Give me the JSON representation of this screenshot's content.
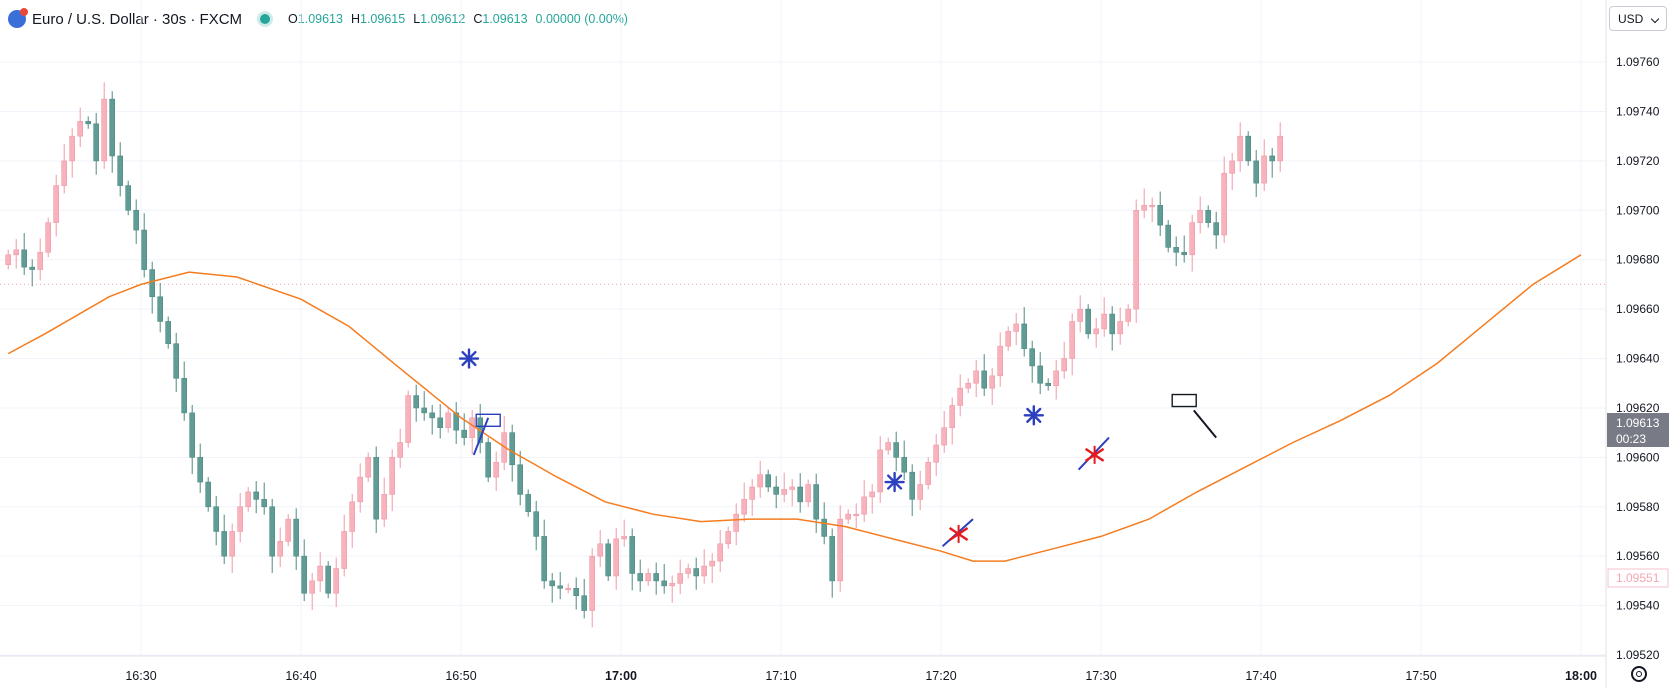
{
  "legend": {
    "symbol": "Euro / U.S. Dollar · 30s · FXCM",
    "market_status_color": "#26a69a",
    "open_label": "O",
    "open": "1.09613",
    "high_label": "H",
    "high": "1.09615",
    "low_label": "L",
    "low": "1.09612",
    "close_label": "C",
    "close": "1.09613",
    "change": "0.00000 (0.00%)"
  },
  "price_scale": {
    "currency": "USD",
    "current_price": "1.09613",
    "countdown": "00:23",
    "low_marker": "1.09551"
  },
  "colors": {
    "up": "#f7b2bc",
    "up_border": "#ef9aa8",
    "down": "#5f9c95",
    "down_border": "#4f8a83",
    "moving_average": "#f57c1f",
    "grid": "#f0f3fa",
    "annotation_blue": "#2b3fbf",
    "annotation_red": "#e5191e"
  },
  "chart_data": {
    "type": "candlestick",
    "title": "Euro / U.S. Dollar · 30s · FXCM",
    "ylim": [
      1.0952,
      1.09775
    ],
    "y_ticks": [
      "1.09760",
      "1.09740",
      "1.09720",
      "1.09700",
      "1.09680",
      "1.09660",
      "1.09640",
      "1.09620",
      "1.09600",
      "1.09580",
      "1.09560",
      "1.09540",
      "1.09520"
    ],
    "x_ticks": [
      {
        "label": "16:30",
        "minute": 30,
        "bold": false
      },
      {
        "label": "16:40",
        "minute": 40,
        "bold": false
      },
      {
        "label": "16:50",
        "minute": 50,
        "bold": false
      },
      {
        "label": "17:00",
        "minute": 60,
        "bold": true
      },
      {
        "label": "17:10",
        "minute": 70,
        "bold": false
      },
      {
        "label": "17:20",
        "minute": 80,
        "bold": false
      },
      {
        "label": "17:30",
        "minute": 90,
        "bold": false
      },
      {
        "label": "17:40",
        "minute": 100,
        "bold": false
      },
      {
        "label": "17:50",
        "minute": 110,
        "bold": false
      },
      {
        "label": "18:00",
        "minute": 120,
        "bold": true
      }
    ],
    "x_start_minute": 21.7,
    "bar_minutes": 0.5,
    "closes": [
      1.09682,
      1.09684,
      1.09677,
      1.09676,
      1.09683,
      1.09695,
      1.0971,
      1.0972,
      1.0973,
      1.09736,
      1.09735,
      1.0972,
      1.09745,
      1.09722,
      1.0971,
      1.097,
      1.09692,
      1.09676,
      1.09665,
      1.09655,
      1.09646,
      1.09632,
      1.09618,
      1.096,
      1.0959,
      1.0958,
      1.0957,
      1.0956,
      1.0957,
      1.0958,
      1.09586,
      1.09583,
      1.0958,
      1.0956,
      1.09566,
      1.09575,
      1.0956,
      1.09545,
      1.0955,
      1.09556,
      1.09545,
      1.09555,
      1.0957,
      1.09582,
      1.09592,
      1.096,
      1.09575,
      1.09585,
      1.096,
      1.09606,
      1.09625,
      1.0962,
      1.09618,
      1.09616,
      1.09612,
      1.09618,
      1.09611,
      1.09608,
      1.09616,
      1.09606,
      1.09592,
      1.09598,
      1.0961,
      1.09597,
      1.09585,
      1.09578,
      1.09568,
      1.0955,
      1.09548,
      1.09547,
      1.09547,
      1.09544,
      1.09538,
      1.0956,
      1.09565,
      1.09552,
      1.09567,
      1.09568,
      1.09553,
      1.0955,
      1.09553,
      1.0955,
      1.09548,
      1.09549,
      1.09553,
      1.09555,
      1.09552,
      1.09556,
      1.09558,
      1.09565,
      1.0957,
      1.09577,
      1.09583,
      1.09588,
      1.09593,
      1.09588,
      1.09585,
      1.09587,
      1.09588,
      1.09582,
      1.09589,
      1.09575,
      1.09568,
      1.0955,
      1.09575,
      1.09577,
      1.09577,
      1.09584,
      1.09586,
      1.09603,
      1.09606,
      1.096,
      1.09594,
      1.09583,
      1.09589,
      1.09598,
      1.09605,
      1.09612,
      1.09621,
      1.09628,
      1.0963,
      1.09635,
      1.09628,
      1.09633,
      1.09645,
      1.09651,
      1.09654,
      1.09644,
      1.09637,
      1.0963,
      1.09629,
      1.09635,
      1.0964,
      1.09655,
      1.0966,
      1.0965,
      1.09652,
      1.09658,
      1.0965,
      1.09655,
      1.0966,
      1.097,
      1.09702,
      1.09702,
      1.09694,
      1.09685,
      1.09683,
      1.09682,
      1.09695,
      1.097,
      1.09695,
      1.0969,
      1.09715,
      1.0972,
      1.0973,
      1.0972,
      1.09711,
      1.09722,
      1.0972,
      1.0973
    ],
    "moving_average": [
      [
        21.7,
        1.09642
      ],
      [
        24,
        1.0965
      ],
      [
        28,
        1.09665
      ],
      [
        30,
        1.0967
      ],
      [
        33,
        1.09675
      ],
      [
        36,
        1.09673
      ],
      [
        40,
        1.09664
      ],
      [
        43,
        1.09653
      ],
      [
        46,
        1.09637
      ],
      [
        50,
        1.09616
      ],
      [
        53,
        1.09603
      ],
      [
        56,
        1.09592
      ],
      [
        59,
        1.09582
      ],
      [
        62,
        1.09577
      ],
      [
        65,
        1.09574
      ],
      [
        68,
        1.09575
      ],
      [
        71,
        1.09575
      ],
      [
        74,
        1.09572
      ],
      [
        77,
        1.09567
      ],
      [
        80,
        1.09562
      ],
      [
        82,
        1.09558
      ],
      [
        84,
        1.09558
      ],
      [
        87,
        1.09563
      ],
      [
        90,
        1.09568
      ],
      [
        93,
        1.09575
      ],
      [
        96,
        1.09586
      ],
      [
        99,
        1.09596
      ],
      [
        102,
        1.09606
      ],
      [
        105,
        1.09615
      ],
      [
        108,
        1.09625
      ],
      [
        111,
        1.09638
      ],
      [
        114,
        1.09654
      ],
      [
        117,
        1.0967
      ],
      [
        120,
        1.09682
      ]
    ],
    "reference_line": 1.0967,
    "annotations": [
      {
        "type": "asterisk",
        "minute": 50.5,
        "price": 1.0964,
        "color": "#2b3fbf"
      },
      {
        "type": "diag_line",
        "from": [
          50.8,
          1.09601
        ],
        "to": [
          51.7,
          1.09616
        ],
        "color": "#2b3fbf"
      },
      {
        "type": "box",
        "minute": 51.7,
        "price": 1.09615,
        "color": "#2b3fbf"
      },
      {
        "type": "asterisk",
        "minute": 77.1,
        "price": 1.0959,
        "color": "#2b3fbf"
      },
      {
        "type": "diag_line",
        "from": [
          80.1,
          1.09564
        ],
        "to": [
          82.0,
          1.09575
        ],
        "color": "#2b3fbf"
      },
      {
        "type": "cross",
        "minute": 81.1,
        "price": 1.09569,
        "color": "#e5191e"
      },
      {
        "type": "asterisk",
        "minute": 85.8,
        "price": 1.09617,
        "color": "#2b3fbf"
      },
      {
        "type": "diag_line",
        "from": [
          88.6,
          1.09595
        ],
        "to": [
          90.5,
          1.09608
        ],
        "color": "#2b3fbf"
      },
      {
        "type": "cross",
        "minute": 89.6,
        "price": 1.09601,
        "color": "#e5191e"
      },
      {
        "type": "box",
        "minute": 95.2,
        "price": 1.09623,
        "color": "#131722"
      },
      {
        "type": "diag_line",
        "from": [
          95.8,
          1.09619
        ],
        "to": [
          97.2,
          1.09608
        ],
        "color": "#131722"
      }
    ]
  }
}
